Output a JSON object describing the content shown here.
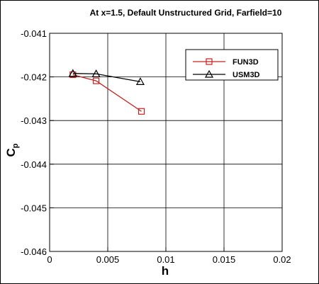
{
  "chart_data": {
    "type": "line",
    "title": "At x=1.5, Default Unstructured Grid, Farfield=10",
    "xlabel": "h",
    "ylabel": "C",
    "ylabel_sub": "p",
    "xlim": [
      0,
      0.02
    ],
    "ylim": [
      -0.046,
      -0.041
    ],
    "x_ticks": [
      0,
      0.005,
      0.01,
      0.015,
      0.02
    ],
    "x_tick_labels": [
      "0",
      "0.005",
      "0.01",
      "0.015",
      "0.02"
    ],
    "y_ticks": [
      -0.046,
      -0.045,
      -0.044,
      -0.043,
      -0.042,
      -0.041
    ],
    "y_tick_labels": [
      "-0.046",
      "-0.045",
      "-0.044",
      "-0.043",
      "-0.042",
      "-0.041"
    ],
    "grid": true,
    "legend_position": "top-right",
    "series": [
      {
        "name": "FUN3D",
        "color": "#c8201e",
        "marker": "square",
        "x": [
          0.002,
          0.004,
          0.0079
        ],
        "y": [
          -0.04195,
          -0.04209,
          -0.04279
        ]
      },
      {
        "name": "USM3D",
        "color": "#000000",
        "marker": "triangle",
        "x": [
          0.002,
          0.004,
          0.0078
        ],
        "y": [
          -0.04192,
          -0.04193,
          -0.04211
        ]
      }
    ]
  }
}
